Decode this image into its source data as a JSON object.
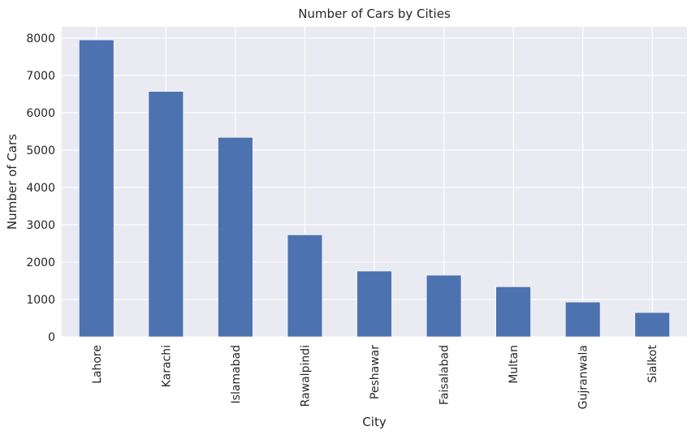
{
  "chart_data": {
    "type": "bar",
    "title": "Number of Cars by Cities",
    "xlabel": "City",
    "ylabel": "Number of Cars",
    "categories": [
      "Lahore",
      "Karachi",
      "Islamabad",
      "Rawalpindi",
      "Peshawar",
      "Faisalabad",
      "Multan",
      "Gujranwala",
      "Sialkot"
    ],
    "values": [
      7950,
      6570,
      5340,
      2730,
      1760,
      1650,
      1340,
      930,
      650
    ],
    "ylim": [
      0,
      8300
    ],
    "yticks": [
      0,
      1000,
      2000,
      3000,
      4000,
      5000,
      6000,
      7000,
      8000
    ],
    "grid": true,
    "legend": "none",
    "colors": {
      "bar": "#4c72b0",
      "plot_background": "#eaeaf2",
      "grid": "#ffffff",
      "text": "#262626"
    }
  }
}
